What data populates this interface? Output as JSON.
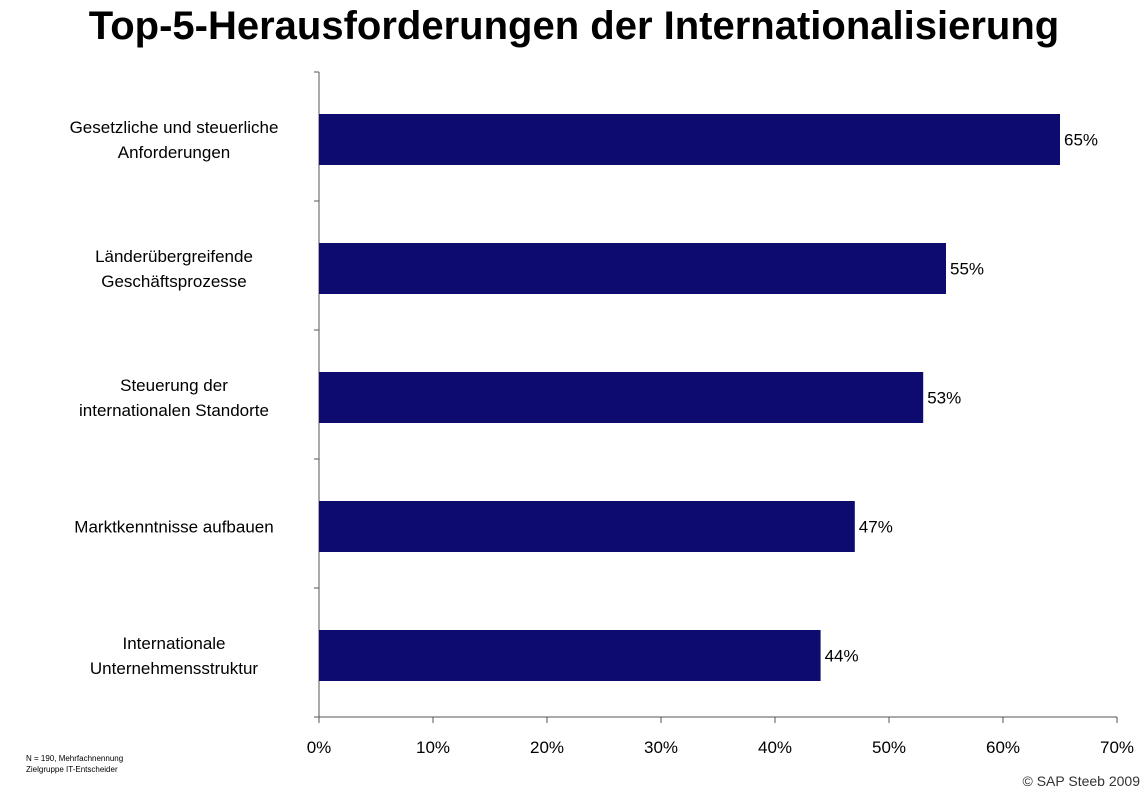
{
  "chart_data": {
    "type": "bar",
    "orientation": "horizontal",
    "title": "Top-5-Herausforderungen der Internationalisierung",
    "categories": [
      [
        "Gesetzliche und steuerliche",
        "Anforderungen"
      ],
      [
        "Länderübergreifende",
        "Geschäftsprozesse"
      ],
      [
        "Steuerung der",
        "internationalen Standorte"
      ],
      [
        "Marktkenntnisse aufbauen"
      ],
      [
        "Internationale",
        "Unternehmensstruktur"
      ]
    ],
    "values": [
      65,
      55,
      53,
      47,
      44
    ],
    "data_labels": [
      "65%",
      "55%",
      "53%",
      "47%",
      "44%"
    ],
    "xlim": [
      0,
      70
    ],
    "x_ticks": [
      "0%",
      "10%",
      "20%",
      "30%",
      "40%",
      "50%",
      "60%",
      "70%"
    ],
    "unit": "%",
    "grid": false,
    "bar_color": "#0d0c6e"
  },
  "footnote": {
    "line1": "N = 190, Mehrfachnennung",
    "line2": "Zielgruppe IT-Entscheider"
  },
  "copyright": "© SAP Steeb 2009"
}
